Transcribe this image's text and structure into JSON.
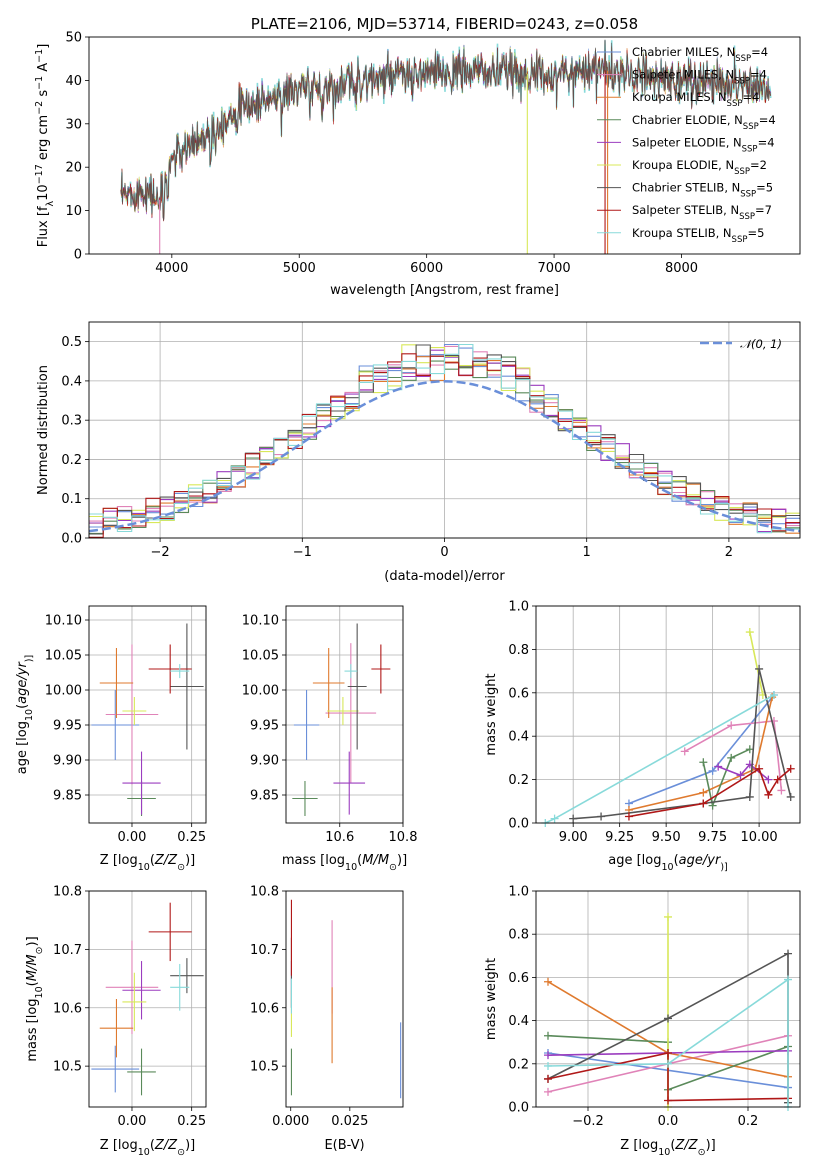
{
  "colors": {
    "Chabrier MILES": "#6a8fd9",
    "Salpeter MILES": "#e083b8",
    "Kroupa MILES": "#df7a2e",
    "Chabrier ELODIE": "#5a8a5a",
    "Salpeter ELODIE": "#9b3dbf",
    "Kroupa ELODIE": "#d8e85a",
    "Chabrier STELIB": "#555555",
    "Salpeter STELIB": "#b01818",
    "Kroupa STELIB": "#88dada"
  },
  "chart_data": [
    {
      "id": "spectrum",
      "type": "line",
      "title": "PLATE=2106, MJD=53714, FIBERID=0243, z=0.058",
      "xlabel": "wavelength [Angstrom, rest frame]",
      "ylabel_parts": [
        "Flux [f",
        "λ",
        "10",
        "−17",
        " erg cm",
        "−2",
        " s",
        "−1",
        " A",
        "−1",
        "]"
      ],
      "xlim": [
        3350,
        8930
      ],
      "ylim": [
        0,
        50
      ],
      "xticks": [
        4000,
        5000,
        6000,
        7000,
        8000
      ],
      "yticks": [
        0,
        10,
        20,
        30,
        40,
        50
      ],
      "x_range": [
        3600,
        8700
      ],
      "continuum_wavelength": [
        3600,
        3800,
        3900,
        4000,
        4100,
        4300,
        4500,
        4800,
        5000,
        5200,
        5500,
        5800,
        6000,
        6300,
        6600,
        7000,
        7300,
        7600,
        8000,
        8400,
        8700
      ],
      "continuum_flux": [
        13,
        15,
        12,
        22,
        24,
        28,
        33,
        36,
        38,
        38,
        40,
        41,
        41.5,
        42,
        42,
        41,
        43,
        41,
        40,
        39.5,
        38.5
      ],
      "legend": {
        "position": "upper-right",
        "entries": [
          {
            "name": "Chabrier MILES",
            "main": "Chabrier MILES, N",
            "sub": "SSP",
            "tail": "=4"
          },
          {
            "name": "Salpeter MILES",
            "main": "Salpeter MILES, N",
            "sub": "SSP",
            "tail": "=4"
          },
          {
            "name": "Kroupa MILES",
            "main": "Kroupa MILES, N",
            "sub": "SSP",
            "tail": "=4"
          },
          {
            "name": "Chabrier ELODIE",
            "main": "Chabrier ELODIE, N",
            "sub": "SSP",
            "tail": "=4"
          },
          {
            "name": "Salpeter ELODIE",
            "main": "Salpeter ELODIE, N",
            "sub": "SSP",
            "tail": "=4"
          },
          {
            "name": "Kroupa ELODIE",
            "main": "Kroupa ELODIE, N",
            "sub": "SSP",
            "tail": "=2"
          },
          {
            "name": "Chabrier STELIB",
            "main": "Chabrier STELIB, N",
            "sub": "SSP",
            "tail": "=5"
          },
          {
            "name": "Salpeter STELIB",
            "main": "Salpeter STELIB, N",
            "sub": "SSP",
            "tail": "=7"
          },
          {
            "name": "Kroupa STELIB",
            "main": "Kroupa STELIB, N",
            "sub": "SSP",
            "tail": "=5"
          }
        ]
      },
      "drops": [
        {
          "model": "Salpeter MILES",
          "x": 3905
        },
        {
          "model": "Kroupa ELODIE",
          "x": 6790
        },
        {
          "model": "Salpeter STELIB",
          "x": 7400
        },
        {
          "model": "Kroupa MILES",
          "x": 7420
        }
      ]
    },
    {
      "id": "residuals",
      "type": "histogram",
      "xlabel": "(data-model)/error",
      "ylabel": "Normed distribution",
      "xlim": [
        -2.5,
        2.5
      ],
      "ylim": [
        0,
        0.55
      ],
      "xticks": [
        -2,
        -1,
        0,
        1,
        2
      ],
      "yticks": [
        0.0,
        0.1,
        0.2,
        0.3,
        0.4,
        0.5
      ],
      "grid": true,
      "bin_width": 0.1,
      "legend": {
        "position": "upper-right",
        "label": "𝒩(0, 1)"
      },
      "reference_curve": {
        "type": "normal",
        "mean": 0,
        "sd": 1
      }
    },
    {
      "id": "age-vs-Z",
      "type": "scatter",
      "xlabel_parts": [
        "Z [log",
        "10",
        "(",
        "Z/Z",
        "⊙",
        ")]"
      ],
      "ylabel_parts": [
        "age  [log",
        "10",
        "(",
        "age/yr",
        ")]"
      ],
      "xlim": [
        -0.18,
        0.31
      ],
      "ylim": [
        9.81,
        10.12
      ],
      "xticks": [
        0.0,
        0.25
      ],
      "yticks": [
        9.85,
        9.9,
        9.95,
        10.0,
        10.05,
        10.1
      ],
      "grid": true,
      "points": [
        {
          "model": "Chabrier MILES",
          "x": -0.07,
          "y": 9.95,
          "xerr": 0.1,
          "yerr": 0.05
        },
        {
          "model": "Salpeter MILES",
          "x": 0.0,
          "y": 9.965,
          "xerr": 0.11,
          "yerr": 0.1
        },
        {
          "model": "Kroupa MILES",
          "x": -0.065,
          "y": 10.01,
          "xerr": 0.07,
          "yerr": 0.05
        },
        {
          "model": "Chabrier ELODIE",
          "x": 0.04,
          "y": 9.845,
          "xerr": 0.06,
          "yerr": 0.025
        },
        {
          "model": "Salpeter ELODIE",
          "x": 0.04,
          "y": 9.867,
          "xerr": 0.08,
          "yerr": 0.045
        },
        {
          "model": "Kroupa ELODIE",
          "x": 0.01,
          "y": 9.97,
          "xerr": 0.05,
          "yerr": 0.02
        },
        {
          "model": "Chabrier STELIB",
          "x": 0.23,
          "y": 10.005,
          "xerr": 0.07,
          "yerr": 0.09
        },
        {
          "model": "Salpeter STELIB",
          "x": 0.16,
          "y": 10.03,
          "xerr": 0.09,
          "yerr": 0.035
        },
        {
          "model": "Kroupa STELIB",
          "x": 0.2,
          "y": 10.027,
          "xerr": 0.04,
          "yerr": 0.01
        }
      ]
    },
    {
      "id": "age-vs-mass",
      "type": "scatter",
      "xlabel_parts": [
        "mass [log",
        "10",
        "(",
        "M/M",
        "⊙",
        ")]"
      ],
      "xlim": [
        10.43,
        10.8
      ],
      "ylim": [
        9.81,
        10.12
      ],
      "xticks": [
        10.6,
        10.8
      ],
      "yticks": [
        9.85,
        9.9,
        9.95,
        10.0,
        10.05,
        10.1
      ],
      "grid": true,
      "points": [
        {
          "model": "Chabrier MILES",
          "x": 10.495,
          "y": 9.95,
          "xerr": 0.04,
          "yerr": 0.05
        },
        {
          "model": "Salpeter MILES",
          "x": 10.635,
          "y": 9.967,
          "xerr": 0.08,
          "yerr": 0.1
        },
        {
          "model": "Kroupa MILES",
          "x": 10.565,
          "y": 10.01,
          "xerr": 0.05,
          "yerr": 0.05
        },
        {
          "model": "Chabrier ELODIE",
          "x": 10.49,
          "y": 9.845,
          "xerr": 0.04,
          "yerr": 0.025
        },
        {
          "model": "Salpeter ELODIE",
          "x": 10.63,
          "y": 9.867,
          "xerr": 0.05,
          "yerr": 0.045
        },
        {
          "model": "Kroupa ELODIE",
          "x": 10.61,
          "y": 9.97,
          "xerr": 0.05,
          "yerr": 0.02
        },
        {
          "model": "Chabrier STELIB",
          "x": 10.655,
          "y": 10.005,
          "xerr": 0.03,
          "yerr": 0.09
        },
        {
          "model": "Salpeter STELIB",
          "x": 10.73,
          "y": 10.03,
          "xerr": 0.03,
          "yerr": 0.035
        },
        {
          "model": "Kroupa STELIB",
          "x": 10.635,
          "y": 10.027,
          "xerr": 0.02,
          "yerr": 0.01
        }
      ]
    },
    {
      "id": "mass-vs-Z",
      "type": "scatter",
      "xlabel_parts": [
        "Z [log",
        "10",
        "(",
        "Z/Z",
        "⊙",
        ")]"
      ],
      "ylabel_parts": [
        "mass [log",
        "10",
        "(",
        "M/M",
        "⊙",
        ")]"
      ],
      "xlim": [
        -0.18,
        0.31
      ],
      "ylim": [
        10.43,
        10.8
      ],
      "xticks": [
        0.0,
        0.25
      ],
      "yticks": [
        10.5,
        10.6,
        10.7,
        10.8
      ],
      "grid": true,
      "points": [
        {
          "model": "Chabrier MILES",
          "x": -0.07,
          "y": 10.495,
          "xerr": 0.1,
          "yerr": 0.04
        },
        {
          "model": "Salpeter MILES",
          "x": 0.0,
          "y": 10.635,
          "xerr": 0.11,
          "yerr": 0.08
        },
        {
          "model": "Kroupa MILES",
          "x": -0.065,
          "y": 10.565,
          "xerr": 0.07,
          "yerr": 0.05
        },
        {
          "model": "Chabrier ELODIE",
          "x": 0.04,
          "y": 10.49,
          "xerr": 0.06,
          "yerr": 0.04
        },
        {
          "model": "Salpeter ELODIE",
          "x": 0.04,
          "y": 10.63,
          "xerr": 0.08,
          "yerr": 0.05
        },
        {
          "model": "Kroupa ELODIE",
          "x": 0.01,
          "y": 10.61,
          "xerr": 0.05,
          "yerr": 0.05
        },
        {
          "model": "Chabrier STELIB",
          "x": 0.23,
          "y": 10.655,
          "xerr": 0.07,
          "yerr": 0.03
        },
        {
          "model": "Salpeter STELIB",
          "x": 0.16,
          "y": 10.73,
          "xerr": 0.09,
          "yerr": 0.05
        },
        {
          "model": "Kroupa STELIB",
          "x": 0.2,
          "y": 10.635,
          "xerr": 0.04,
          "yerr": 0.04
        }
      ]
    },
    {
      "id": "mass-vs-ebv",
      "type": "scatter",
      "xlabel": "E(B-V)",
      "xlim": [
        -0.002,
        0.0475
      ],
      "ylim": [
        10.43,
        10.8
      ],
      "xticks": [
        0.0,
        0.025
      ],
      "yticks": [
        10.5,
        10.6,
        10.7,
        10.8
      ],
      "points": [
        {
          "model": "Chabrier MILES",
          "x": 0.0465,
          "y": 10.51,
          "xerr": 0,
          "yerr": 0.065
        },
        {
          "model": "Salpeter MILES",
          "x": 0.0175,
          "y": 10.67,
          "xerr": 0,
          "yerr": 0.08
        },
        {
          "model": "Kroupa MILES",
          "x": 0.0175,
          "y": 10.57,
          "xerr": 0,
          "yerr": 0.065
        },
        {
          "model": "Chabrier ELODIE",
          "x": 0.0003,
          "y": 10.49,
          "xerr": 0,
          "yerr": 0.04
        },
        {
          "model": "Salpeter ELODIE",
          "x": 0.0003,
          "y": 10.64,
          "xerr": 0,
          "yerr": 0.04
        },
        {
          "model": "Kroupa ELODIE",
          "x": 0.0003,
          "y": 10.59,
          "xerr": 0,
          "yerr": 0.04
        },
        {
          "model": "Chabrier STELIB",
          "x": 0.0003,
          "y": 10.66,
          "xerr": 0,
          "yerr": 0.06
        },
        {
          "model": "Salpeter STELIB",
          "x": 0.0003,
          "y": 10.72,
          "xerr": 0,
          "yerr": 0.065
        },
        {
          "model": "Kroupa STELIB",
          "x": 0.0003,
          "y": 10.62,
          "xerr": 0,
          "yerr": 0.03
        }
      ]
    },
    {
      "id": "weight-vs-age",
      "type": "line",
      "xlabel_parts": [
        "age  [log",
        "10",
        "(",
        "age/yr",
        ")]"
      ],
      "ylabel": "mass weight",
      "xlim": [
        8.8,
        10.22
      ],
      "ylim": [
        0,
        1.0
      ],
      "xticks": [
        9.0,
        9.25,
        9.5,
        9.75,
        10.0
      ],
      "xtick_labels": [
        "9.00",
        "9.25",
        "9.50",
        "9.75",
        "10.00"
      ],
      "yticks": [
        0.0,
        0.2,
        0.4,
        0.6,
        0.8,
        1.0
      ],
      "grid": true,
      "series": [
        {
          "model": "Chabrier MILES",
          "x": [
            9.3,
            9.75,
            10.08
          ],
          "y": [
            0.09,
            0.24,
            0.59
          ]
        },
        {
          "model": "Salpeter MILES",
          "x": [
            9.6,
            9.85,
            10.08,
            10.12
          ],
          "y": [
            0.33,
            0.45,
            0.47,
            0.15
          ]
        },
        {
          "model": "Kroupa MILES",
          "x": [
            9.3,
            9.7,
            9.98,
            10.07
          ],
          "y": [
            0.06,
            0.14,
            0.25,
            0.58
          ]
        },
        {
          "model": "Chabrier ELODIE",
          "x": [
            9.7,
            9.75,
            9.85,
            9.95
          ],
          "y": [
            0.28,
            0.08,
            0.3,
            0.34
          ]
        },
        {
          "model": "Salpeter ELODIE",
          "x": [
            9.78,
            9.9,
            9.95,
            10.05
          ],
          "y": [
            0.26,
            0.22,
            0.27,
            0.2
          ]
        },
        {
          "model": "Kroupa ELODIE",
          "x": [
            9.95,
            10.02
          ],
          "y": [
            0.88,
            0.59
          ]
        },
        {
          "model": "Chabrier STELIB",
          "x": [
            9.0,
            9.15,
            9.7,
            9.95,
            10.0,
            10.17
          ],
          "y": [
            0.02,
            0.03,
            0.09,
            0.12,
            0.71,
            0.12
          ]
        },
        {
          "model": "Salpeter STELIB",
          "x": [
            9.3,
            9.7,
            10.0,
            10.05,
            10.1,
            10.17
          ],
          "y": [
            0.03,
            0.09,
            0.25,
            0.13,
            0.2,
            0.25
          ]
        },
        {
          "model": "Kroupa STELIB",
          "x": [
            8.85,
            8.9,
            10.08
          ],
          "y": [
            0.0,
            0.02,
            0.59
          ]
        }
      ]
    },
    {
      "id": "weight-vs-Z",
      "type": "line",
      "xlabel_parts": [
        "Z [log",
        "10",
        "(",
        "Z/Z",
        "⊙",
        ")]"
      ],
      "ylabel": "mass weight",
      "xlim": [
        -0.33,
        0.33
      ],
      "ylim": [
        0,
        1.0
      ],
      "xticks": [
        -0.2,
        0.0,
        0.2
      ],
      "yticks": [
        0.0,
        0.2,
        0.4,
        0.6,
        0.8,
        1.0
      ],
      "grid": true,
      "series": [
        {
          "model": "Chabrier MILES",
          "x": [
            -0.3,
            0.3
          ],
          "y": [
            0.25,
            0.09
          ]
        },
        {
          "model": "Salpeter MILES",
          "x": [
            -0.3,
            0.3
          ],
          "y": [
            0.07,
            0.33
          ]
        },
        {
          "model": "Kroupa MILES",
          "x": [
            -0.3,
            0.0,
            0.3
          ],
          "y": [
            0.58,
            0.25,
            0.14
          ]
        },
        {
          "model": "Chabrier ELODIE",
          "x": [
            -0.3,
            0.0,
            0.0,
            0.3
          ],
          "y": [
            0.33,
            0.3,
            0.08,
            0.28
          ]
        },
        {
          "model": "Salpeter ELODIE",
          "x": [
            -0.3,
            0.3
          ],
          "y": [
            0.24,
            0.26
          ]
        },
        {
          "model": "Kroupa ELODIE",
          "x": [
            0.0,
            0.0
          ],
          "y": [
            0.88,
            0.0
          ]
        },
        {
          "model": "Chabrier STELIB",
          "x": [
            -0.3,
            0.0,
            0.3,
            0.3
          ],
          "y": [
            0.13,
            0.41,
            0.71,
            0.02
          ]
        },
        {
          "model": "Salpeter STELIB",
          "x": [
            -0.3,
            0.0,
            0.0,
            0.3
          ],
          "y": [
            0.13,
            0.25,
            0.03,
            0.04
          ]
        },
        {
          "model": "Kroupa STELIB",
          "x": [
            -0.3,
            0.0,
            0.3,
            0.3
          ],
          "y": [
            0.19,
            0.2,
            0.59,
            0.0
          ]
        }
      ]
    }
  ]
}
